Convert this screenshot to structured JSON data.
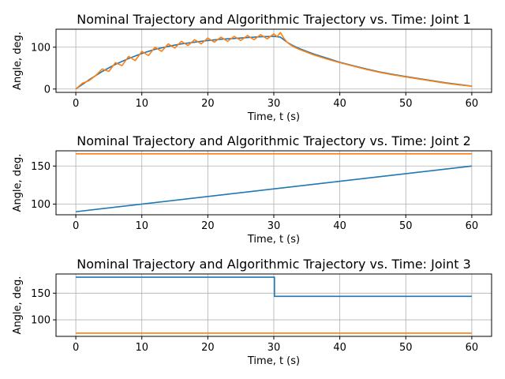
{
  "colors": {
    "nominal": "#1f77b4",
    "algorithmic": "#ff7f0e",
    "grid": "#b0b0b0"
  },
  "chart_data": [
    {
      "type": "line",
      "title": "Nominal Trajectory and Algorithmic Trajectory vs. Time: Joint 1",
      "xlabel": "Time, t (s)",
      "ylabel": "Angle, deg.",
      "xlim": [
        -3,
        63
      ],
      "ylim": [
        -8,
        143
      ],
      "xticks": [
        0,
        10,
        20,
        30,
        40,
        50,
        60
      ],
      "yticks": [
        0,
        100
      ],
      "grid": true,
      "series": [
        {
          "color": "#1f77b4",
          "x": [
            0,
            2,
            4,
            6,
            8,
            10,
            12,
            14,
            16,
            18,
            20,
            22,
            24,
            26,
            28,
            30,
            31,
            32,
            33,
            34,
            35,
            36,
            38,
            40,
            42,
            44,
            46,
            48,
            50,
            52,
            54,
            56,
            58,
            60
          ],
          "y": [
            0,
            22,
            42,
            59,
            73,
            85,
            95,
            102,
            108,
            112,
            116,
            119,
            121,
            123,
            125,
            126,
            124,
            112,
            103,
            96,
            90,
            84,
            74,
            64,
            56,
            48,
            41,
            35,
            30,
            25,
            20,
            15,
            11,
            7
          ]
        },
        {
          "color": "#ff7f0e",
          "x": [
            0,
            1,
            2,
            3,
            4,
            5,
            6,
            7,
            8,
            9,
            10,
            11,
            12,
            13,
            14,
            15,
            16,
            17,
            18,
            19,
            20,
            21,
            22,
            23,
            24,
            25,
            26,
            27,
            28,
            29,
            30,
            30.5,
            31,
            31.5,
            32,
            32.5,
            33,
            34,
            35,
            36,
            38,
            40,
            42,
            44,
            46,
            48,
            50,
            52,
            54,
            56,
            58,
            60
          ],
          "y": [
            0,
            14,
            20,
            32,
            48,
            42,
            63,
            56,
            78,
            68,
            90,
            80,
            100,
            90,
            108,
            98,
            114,
            104,
            118,
            108,
            122,
            112,
            124,
            114,
            126,
            116,
            128,
            118,
            130,
            120,
            132,
            125,
            135,
            122,
            112,
            106,
            101,
            94,
            88,
            82,
            72,
            63,
            55,
            47,
            40,
            34,
            29,
            24,
            19,
            14,
            10,
            7
          ]
        }
      ]
    },
    {
      "type": "line",
      "title": "Nominal Trajectory and Algorithmic Trajectory vs. Time: Joint 2",
      "xlabel": "Time, t (s)",
      "ylabel": "Angle, deg.",
      "xlim": [
        -3,
        63
      ],
      "ylim": [
        86,
        170
      ],
      "xticks": [
        0,
        10,
        20,
        30,
        40,
        50,
        60
      ],
      "yticks": [
        100,
        150
      ],
      "grid": true,
      "series": [
        {
          "color": "#1f77b4",
          "x": [
            0,
            60
          ],
          "y": [
            90,
            150
          ]
        },
        {
          "color": "#ff7f0e",
          "x": [
            0,
            60
          ],
          "y": [
            166,
            166
          ]
        }
      ]
    },
    {
      "type": "line",
      "title": "Nominal Trajectory and Algorithmic Trajectory vs. Time: Joint 3",
      "xlabel": "Time, t (s)",
      "ylabel": "Angle, deg.",
      "xlim": [
        -3,
        63
      ],
      "ylim": [
        69,
        186
      ],
      "xticks": [
        0,
        10,
        20,
        30,
        40,
        50,
        60
      ],
      "yticks": [
        100,
        150
      ],
      "grid": true,
      "series": [
        {
          "color": "#1f77b4",
          "x": [
            0,
            30.1,
            30.1,
            60
          ],
          "y": [
            180,
            180,
            144,
            144
          ]
        },
        {
          "color": "#ff7f0e",
          "x": [
            0,
            60
          ],
          "y": [
            75,
            75
          ]
        }
      ]
    }
  ]
}
